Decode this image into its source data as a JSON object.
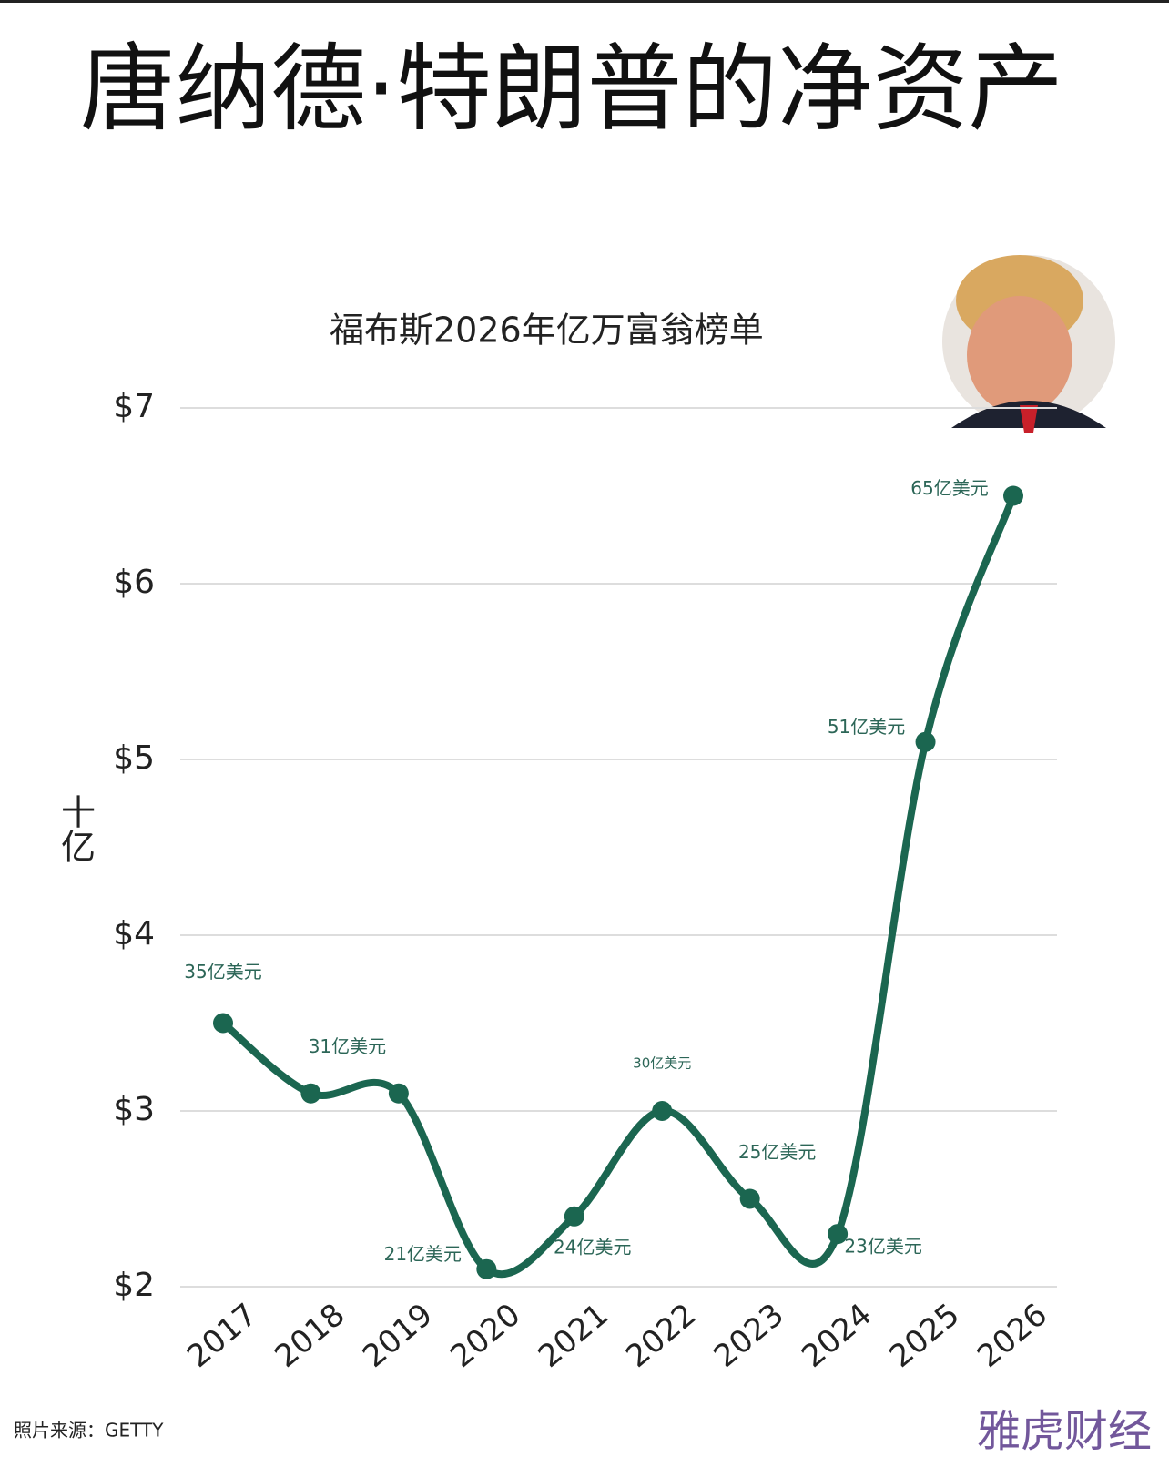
{
  "chart_data": {
    "type": "line",
    "title": "唐纳德·特朗普的净资产",
    "subtitle": "福布斯2026年亿万富翁榜单",
    "y_label": "十亿",
    "categories": [
      "2017",
      "2018",
      "2019",
      "2020",
      "2021",
      "2022",
      "2023",
      "2024",
      "2025",
      "2026"
    ],
    "series": [
      {
        "name": "净资产",
        "color": "#1b6650",
        "values": [
          3.5,
          3.1,
          3.1,
          2.1,
          2.4,
          3.0,
          2.5,
          2.3,
          5.1,
          6.5
        ],
        "value_labels": [
          "35亿美元",
          "31亿美元",
          null,
          "21亿美元",
          "24亿美元",
          "30亿美元",
          "25亿美元",
          "23亿美元",
          "51亿美元",
          "65亿美元"
        ]
      }
    ],
    "ylim": [
      2,
      7
    ],
    "yticks": [
      {
        "value": 2,
        "label": "$2"
      },
      {
        "value": 3,
        "label": "$3"
      },
      {
        "value": 4,
        "label": "$4"
      },
      {
        "value": 5,
        "label": "$5"
      },
      {
        "value": 6,
        "label": "$6"
      },
      {
        "value": 7,
        "label": "$7"
      }
    ],
    "grid": true,
    "source": "照片来源：GETTY",
    "watermark": "雅虎财经"
  }
}
